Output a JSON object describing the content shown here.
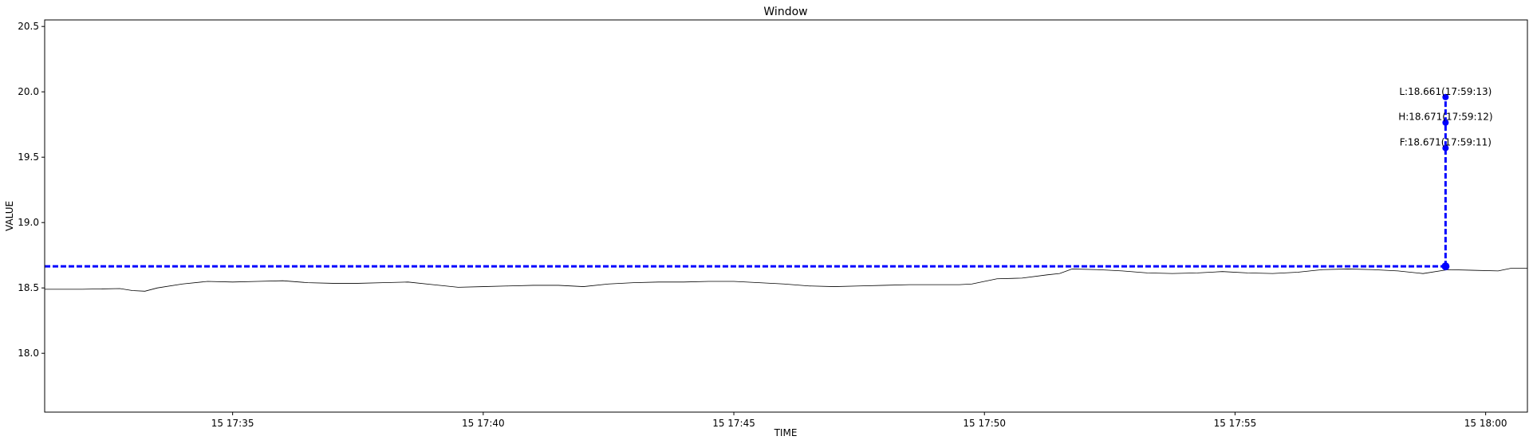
{
  "chart_data": {
    "type": "line",
    "title": "Window",
    "xlabel": "TIME",
    "ylabel": "VALUE",
    "xlim": [
      "15 17:31:15",
      "15 18:00:50"
    ],
    "ylim": [
      17.55,
      20.55
    ],
    "x_ticks": [
      {
        "label": "15 17:35",
        "time": "17:35"
      },
      {
        "label": "15 17:40",
        "time": "17:40"
      },
      {
        "label": "15 17:45",
        "time": "17:45"
      },
      {
        "label": "15 17:50",
        "time": "17:50"
      },
      {
        "label": "15 17:55",
        "time": "17:55"
      },
      {
        "label": "15 18:00",
        "time": "18:00"
      }
    ],
    "y_ticks": [
      "18.0",
      "18.5",
      "19.0",
      "19.5",
      "20.0",
      "20.5"
    ],
    "series": [
      {
        "color": "#000000",
        "style": "solid",
        "points": [
          [
            "17:31:15",
            18.49
          ],
          [
            "17:32:00",
            18.49
          ],
          [
            "17:32:45",
            18.495
          ],
          [
            "17:33:00",
            18.48
          ],
          [
            "17:33:15",
            18.475
          ],
          [
            "17:33:30",
            18.5
          ],
          [
            "17:34:00",
            18.53
          ],
          [
            "17:34:30",
            18.55
          ],
          [
            "17:35:00",
            18.545
          ],
          [
            "17:35:30",
            18.55
          ],
          [
            "17:36:00",
            18.555
          ],
          [
            "17:36:30",
            18.54
          ],
          [
            "17:37:00",
            18.535
          ],
          [
            "17:37:30",
            18.535
          ],
          [
            "17:38:00",
            18.54
          ],
          [
            "17:38:30",
            18.545
          ],
          [
            "17:39:00",
            18.525
          ],
          [
            "17:39:30",
            18.505
          ],
          [
            "17:40:00",
            18.51
          ],
          [
            "17:40:30",
            18.515
          ],
          [
            "17:41:00",
            18.52
          ],
          [
            "17:41:30",
            18.52
          ],
          [
            "17:42:00",
            18.51
          ],
          [
            "17:42:30",
            18.53
          ],
          [
            "17:43:00",
            18.54
          ],
          [
            "17:43:30",
            18.545
          ],
          [
            "17:44:00",
            18.545
          ],
          [
            "17:44:30",
            18.55
          ],
          [
            "17:45:00",
            18.55
          ],
          [
            "17:45:30",
            18.54
          ],
          [
            "17:46:00",
            18.53
          ],
          [
            "17:46:30",
            18.515
          ],
          [
            "17:47:00",
            18.51
          ],
          [
            "17:47:30",
            18.515
          ],
          [
            "17:48:00",
            18.52
          ],
          [
            "17:48:30",
            18.525
          ],
          [
            "17:49:00",
            18.525
          ],
          [
            "17:49:30",
            18.525
          ],
          [
            "17:49:45",
            18.53
          ],
          [
            "17:50:15",
            18.57
          ],
          [
            "17:50:45",
            18.575
          ],
          [
            "17:51:15",
            18.6
          ],
          [
            "17:51:30",
            18.61
          ],
          [
            "17:51:45",
            18.645
          ],
          [
            "17:52:15",
            18.64
          ],
          [
            "17:52:45",
            18.63
          ],
          [
            "17:53:15",
            18.615
          ],
          [
            "17:53:45",
            18.61
          ],
          [
            "17:54:15",
            18.615
          ],
          [
            "17:54:45",
            18.625
          ],
          [
            "17:55:15",
            18.615
          ],
          [
            "17:55:45",
            18.61
          ],
          [
            "17:56:15",
            18.62
          ],
          [
            "17:56:45",
            18.64
          ],
          [
            "17:57:15",
            18.645
          ],
          [
            "17:57:45",
            18.64
          ],
          [
            "17:58:15",
            18.63
          ],
          [
            "17:58:45",
            18.61
          ],
          [
            "17:59:15",
            18.64
          ],
          [
            "17:59:45",
            18.635
          ],
          [
            "18:00:15",
            18.63
          ],
          [
            "18:00:30",
            18.65
          ],
          [
            "18:00:50",
            18.65
          ]
        ]
      }
    ],
    "hline": {
      "y": 18.665,
      "color": "#0000ff",
      "style": "dashed",
      "x_from": "17:31:15",
      "x_to": "17:59:12"
    },
    "vline": {
      "x": "17:59:12",
      "y_from": 18.665,
      "y_to": 19.96,
      "color": "#0000ff",
      "style": "dashed"
    },
    "markers": [
      {
        "x": "17:59:12",
        "y": 18.665,
        "color": "#0000ff"
      },
      {
        "x": "17:59:12",
        "y": 19.57,
        "color": "#0000ff"
      },
      {
        "x": "17:59:12",
        "y": 19.765,
        "color": "#0000ff"
      },
      {
        "x": "17:59:12",
        "y": 19.96,
        "color": "#0000ff"
      }
    ],
    "annotations": [
      {
        "text": "L:18.661(17:59:13)",
        "x": "17:59:12",
        "y": 20.0
      },
      {
        "text": "H:18.671(17:59:12)",
        "x": "17:59:12",
        "y": 19.81
      },
      {
        "text": "F:18.671(17:59:11)",
        "x": "17:59:12",
        "y": 19.615
      }
    ],
    "grid": false,
    "legend": "none"
  }
}
